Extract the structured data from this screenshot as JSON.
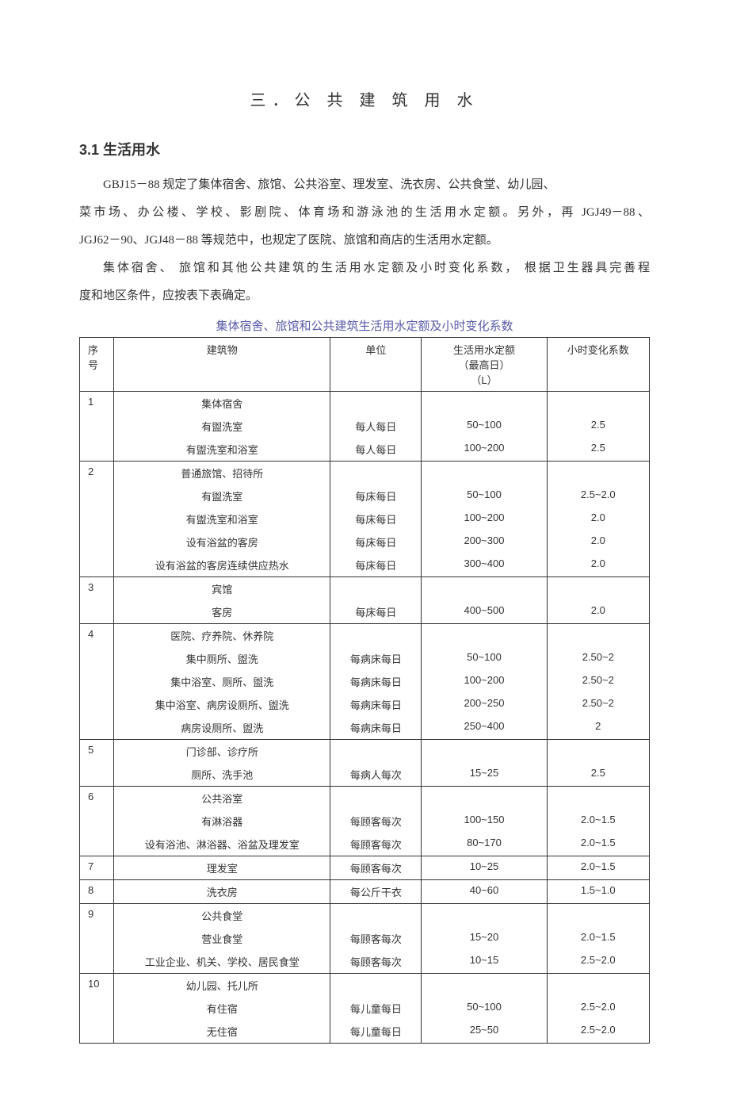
{
  "chapter_title": "三．公 共 建 筑 用 水",
  "section_title": "3.1 生活用水",
  "paragraphs": {
    "p1_a": "GBJ15－88 规定了集体宿舍、旅馆、公共浴室、理发室、洗衣房、公共食堂、幼儿园、",
    "p1_b_left": "菜市场、办公楼、学校、影剧院、体育场和游泳池的生活用水定额。另外，再",
    "p1_b_right": "JGJ49－88、",
    "p1_c": "JGJ62－90、JGJ48－88 等规范中，也规定了医院、旅馆和商店的生活用水定额。",
    "p2_left": "集体宿舍、 旅馆和其他公共建筑的生活用水定额及小时变化系数，",
    "p2_right": "根据卫生器具完善程",
    "p2_b": "度和地区条件，应按表下表确定。"
  },
  "table_caption": "集体宿舍、旅馆和公共建筑生活用水定额及小时变化系数",
  "table": {
    "headers": {
      "seq1": "序",
      "seq2": "号",
      "bldg": "建筑物",
      "unit": "单位",
      "quota1": "生活用水定额",
      "quota2": "（最高日）",
      "quota3": "（L）",
      "coef": "小时变化系数"
    },
    "groups": [
      {
        "no": "1",
        "title": "集体宿舍",
        "rows": [
          {
            "b": "有盥洗室",
            "u": "每人每日",
            "q": "50~100",
            "c": "2.5"
          },
          {
            "b": "有盥洗室和浴室",
            "u": "每人每日",
            "q": "100~200",
            "c": "2.5"
          }
        ]
      },
      {
        "no": "2",
        "title": "普通旅馆、招待所",
        "rows": [
          {
            "b": "有盥洗室",
            "u": "每床每日",
            "q": "50~100",
            "c": "2.5~2.0"
          },
          {
            "b": "有盥洗室和浴室",
            "u": "每床每日",
            "q": "100~200",
            "c": "2.0"
          },
          {
            "b": "设有浴盆的客房",
            "u": "每床每日",
            "q": "200~300",
            "c": "2.0"
          },
          {
            "b": "设有浴盆的客房连续供应热水",
            "u": "每床每日",
            "q": "300~400",
            "c": "2.0"
          }
        ]
      },
      {
        "no": "3",
        "title": "宾馆",
        "rows": [
          {
            "b": "客房",
            "u": "每床每日",
            "q": "400~500",
            "c": "2.0"
          }
        ]
      },
      {
        "no": "4",
        "title": "医院、疗养院、休养院",
        "rows": [
          {
            "b": "集中厕所、盥洗",
            "u": "每病床每日",
            "q": "50~100",
            "c": "2.50~2"
          },
          {
            "b": "集中浴室、厕所、盥洗",
            "u": "每病床每日",
            "q": "100~200",
            "c": "2.50~2"
          },
          {
            "b": "集中浴室、病房设厕所、盥洗",
            "u": "每病床每日",
            "q": "200~250",
            "c": "2.50~2"
          },
          {
            "b": "病房设厕所、盥洗",
            "u": "每病床每日",
            "q": "250~400",
            "c": "2"
          }
        ]
      },
      {
        "no": "5",
        "title": "门诊部、诊疗所",
        "rows": [
          {
            "b": "厕所、洗手池",
            "u": "每病人每次",
            "q": "15~25",
            "c": "2.5"
          }
        ]
      },
      {
        "no": "6",
        "title": "公共浴室",
        "rows": [
          {
            "b": "有淋浴器",
            "u": "每顾客每次",
            "q": "100~150",
            "c": "2.0~1.5"
          },
          {
            "b": "设有浴池、淋浴器、浴盆及理发室",
            "u": "每顾客每次",
            "q": "80~170",
            "c": "2.0~1.5"
          }
        ]
      },
      {
        "no": "7",
        "title": "理发室",
        "title_unit": "每顾客每次",
        "title_q": "10~25",
        "title_c": "2.0~1.5",
        "rows": []
      },
      {
        "no": "8",
        "title": "洗衣房",
        "title_unit": "每公斤干衣",
        "title_q": "40~60",
        "title_c": "1.5~1.0",
        "rows": []
      },
      {
        "no": "9",
        "title": "公共食堂",
        "rows": [
          {
            "b": "营业食堂",
            "u": "每顾客每次",
            "q": "15~20",
            "c": "2.0~1.5"
          },
          {
            "b": "工业企业、机关、学校、居民食堂",
            "u": "每顾客每次",
            "q": "10~15",
            "c": "2.5~2.0"
          }
        ]
      },
      {
        "no": "10",
        "title": "幼儿园、托儿所",
        "rows": [
          {
            "b": "有住宿",
            "u": "每儿童每日",
            "q": "50~100",
            "c": "2.5~2.0"
          },
          {
            "b": "无住宿",
            "u": "每儿童每日",
            "q": "25~50",
            "c": "2.5~2.0"
          }
        ]
      }
    ]
  }
}
